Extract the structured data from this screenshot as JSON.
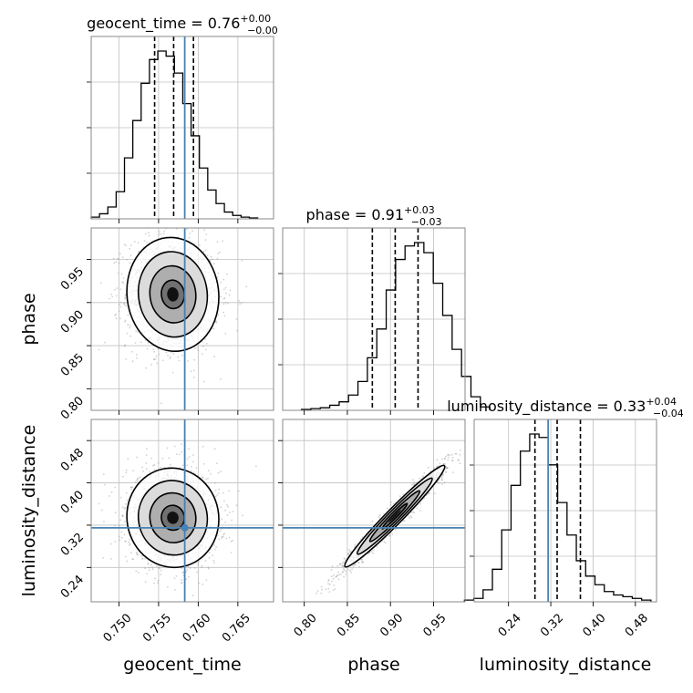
{
  "chart_data": {
    "type": "corner",
    "colors": {
      "truth": "#4682b4",
      "hist": "#000000",
      "grid": "#c0c0c0",
      "quantile": "#000000"
    },
    "parameters": [
      {
        "name": "geocent_time",
        "label": "geocent_time",
        "range": [
          0.7465,
          0.7695
        ],
        "truth": 0.7583,
        "ticks": [
          0.75,
          0.755,
          0.76,
          0.765
        ],
        "tick_labels": [
          "0.750",
          "0.755",
          "0.760",
          "0.765"
        ],
        "title": {
          "prefix": "geocent_time = 0.76",
          "plus": "+0.00",
          "minus": "−0.00"
        },
        "quantiles": [
          0.7545,
          0.7569,
          0.7594
        ],
        "mean": 0.757,
        "sd": 0.0025
      },
      {
        "name": "phase",
        "label": "phase",
        "range": [
          0.775,
          0.9865
        ],
        "truth": null,
        "ticks": [
          0.8,
          0.85,
          0.9,
          0.95
        ],
        "tick_labels": [
          "0.80",
          "0.85",
          "0.90",
          "0.95"
        ],
        "title": {
          "prefix": "phase = 0.91",
          "plus": "+0.03",
          "minus": "−0.03"
        },
        "quantiles": [
          0.879,
          0.9055,
          0.932
        ],
        "mean": 0.906,
        "sd": 0.026
      },
      {
        "name": "luminosity_distance",
        "label": "luminosity_distance",
        "range": [
          0.175,
          0.52
        ],
        "truth": 0.315,
        "ticks": [
          0.24,
          0.32,
          0.4,
          0.48
        ],
        "tick_labels": [
          "0.24",
          "0.32",
          "0.40",
          "0.48"
        ],
        "title": {
          "prefix": "luminosity_distance = 0.33",
          "plus": "+0.04",
          "minus": "−0.04"
        },
        "quantiles": [
          0.29,
          0.332,
          0.376
        ],
        "mean": 0.333,
        "sd": 0.042
      }
    ],
    "histograms": [
      {
        "param": "geocent_time",
        "bins": 20,
        "counts": [
          0.01,
          0.03,
          0.07,
          0.16,
          0.36,
          0.58,
          0.8,
          0.94,
          0.99,
          0.96,
          0.86,
          0.68,
          0.49,
          0.3,
          0.17,
          0.09,
          0.04,
          0.02,
          0.01,
          0.005
        ]
      },
      {
        "param": "phase",
        "bins": 20,
        "counts": [
          0.005,
          0.01,
          0.015,
          0.03,
          0.05,
          0.09,
          0.17,
          0.31,
          0.48,
          0.71,
          0.89,
          0.97,
          0.99,
          0.93,
          0.75,
          0.56,
          0.36,
          0.2,
          0.08,
          0.02
        ]
      },
      {
        "param": "luminosity_distance",
        "bins": 20,
        "counts": [
          0.01,
          0.02,
          0.07,
          0.19,
          0.42,
          0.68,
          0.88,
          0.98,
          0.96,
          0.8,
          0.58,
          0.39,
          0.24,
          0.15,
          0.1,
          0.06,
          0.04,
          0.03,
          0.02,
          0.01
        ]
      }
    ],
    "contours_2d": [
      {
        "x": "geocent_time",
        "y": "phase",
        "center": [
          0.7568,
          0.9095
        ],
        "sd": [
          0.0029,
          0.033
        ],
        "rho": -0.05
      },
      {
        "x": "geocent_time",
        "y": "luminosity_distance",
        "center": [
          0.7568,
          0.334
        ],
        "sd": [
          0.0029,
          0.047
        ],
        "rho": -0.03
      },
      {
        "x": "phase",
        "y": "luminosity_distance",
        "center": [
          0.905,
          0.337
        ],
        "sd": [
          0.029,
          0.048
        ],
        "rho": 0.975
      }
    ],
    "contour_levels_sigma": [
      0.5,
      1.0,
      1.5,
      2.0
    ],
    "grid": true
  }
}
